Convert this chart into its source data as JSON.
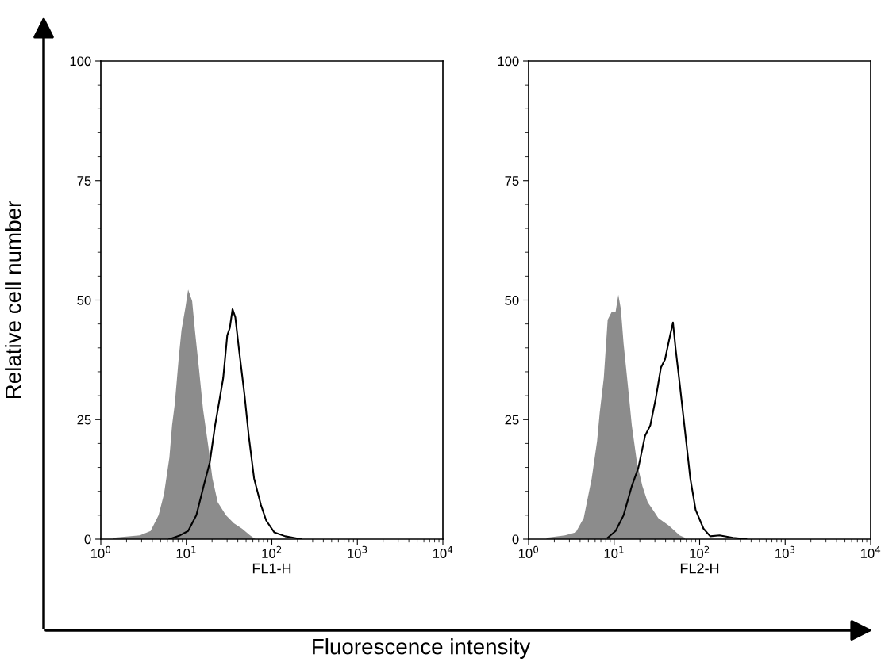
{
  "chart_data": [
    {
      "type": "area",
      "ylabel": "Relative cell number",
      "xlabel": "FL1-H",
      "annotations": [
        "Fluorescence intensity"
      ],
      "log": "x",
      "xlim": [
        1,
        10000
      ],
      "xticks": [
        {
          "value": 1,
          "label": "10$^{0}$"
        },
        {
          "value": 10,
          "label": "10$^{1}$"
        },
        {
          "value": 100,
          "label": "10$^{2}$"
        },
        {
          "value": 1000,
          "label": "10$^{3}$"
        },
        {
          "value": 10000,
          "label": "10$^{4}$"
        }
      ],
      "ylim": [
        0,
        100
      ],
      "yticks": [
        0,
        25,
        50,
        75,
        100
      ],
      "grid": false,
      "series": [
        {
          "color": "#8c8c8c",
          "x": [
            1.39,
            2.86,
            3.82,
            4.74,
            5.48,
            6.34,
            6.81,
            7.32,
            8.17,
            8.78,
            9.79,
            10.5,
            11.7,
            12.6,
            14.1,
            15.7,
            18.1,
            20.2,
            23.3,
            29.0,
            36.0,
            44.8,
            55.6,
            64.3
          ],
          "values": [
            0.3,
            0.8,
            1.7,
            5.0,
            9.4,
            17.1,
            23.8,
            28.2,
            38.1,
            43.7,
            48.6,
            52.2,
            49.8,
            43.7,
            35.4,
            27.1,
            19.3,
            12.7,
            7.7,
            5.0,
            3.3,
            2.2,
            0.8,
            0
          ]
        },
        {
          "type": "line",
          "color": "#000000",
          "x": [
            6.34,
            8.47,
            10.5,
            13.1,
            16.2,
            18.8,
            21.7,
            24.2,
            27.0,
            30.1,
            32.3,
            34.7,
            37.4,
            41.6,
            48.1,
            53.7,
            62.0,
            74.4,
            85.9,
            107,
            143,
            220
          ],
          "values": [
            0,
            0.8,
            1.7,
            5.0,
            11.6,
            16.0,
            23.8,
            28.7,
            33.7,
            42.6,
            44.2,
            48.1,
            46.4,
            39.2,
            29.9,
            21.6,
            12.7,
            7.2,
            3.9,
            1.4,
            0.6,
            0
          ]
        }
      ]
    },
    {
      "type": "area",
      "xlabel": "FL2-H",
      "log": "x",
      "xlim": [
        1,
        10000
      ],
      "xticks": [
        {
          "value": 1,
          "label": "10$^{0}$"
        },
        {
          "value": 10,
          "label": "10$^{1}$"
        },
        {
          "value": 100,
          "label": "10$^{2}$"
        },
        {
          "value": 1000,
          "label": "10$^{3}$"
        },
        {
          "value": 10000,
          "label": "10$^{4}$"
        }
      ],
      "ylim": [
        0,
        100
      ],
      "yticks": [
        0,
        25,
        50,
        75,
        100
      ],
      "grid": false,
      "series": [
        {
          "color": "#8c8c8c",
          "x": [
            1.62,
            2.67,
            3.56,
            4.41,
            5.47,
            6.32,
            6.79,
            7.57,
            8.41,
            9.37,
            10.4,
            11.2,
            12.0,
            12.9,
            14.4,
            16.1,
            18.5,
            21.4,
            24.7,
            28.5,
            32.9,
            43.8,
            58.4,
            67.4
          ],
          "values": [
            0.3,
            0.8,
            1.4,
            4.4,
            12.7,
            20.5,
            26.5,
            33.7,
            45.9,
            47.5,
            47.5,
            51.1,
            48.1,
            40.9,
            32.6,
            23.8,
            16.0,
            11.1,
            7.7,
            6.1,
            4.4,
            2.8,
            0.8,
            0.3
          ]
        },
        {
          "type": "line",
          "color": "#000000",
          "x": [
            8.41,
            10.4,
            12.9,
            16.1,
            19.2,
            23.0,
            26.5,
            30.6,
            35.3,
            39.4,
            43.8,
            48.8,
            52.4,
            58.4,
            67.4,
            77.8,
            89.8,
            111,
            133,
            171,
            245,
            351
          ],
          "values": [
            0.3,
            1.7,
            5.0,
            11.1,
            14.9,
            21.6,
            23.8,
            29.3,
            35.9,
            37.6,
            41.5,
            45.3,
            39.8,
            32.6,
            22.7,
            12.7,
            6.1,
            2.2,
            0.6,
            0.8,
            0.3,
            0
          ]
        }
      ]
    }
  ]
}
